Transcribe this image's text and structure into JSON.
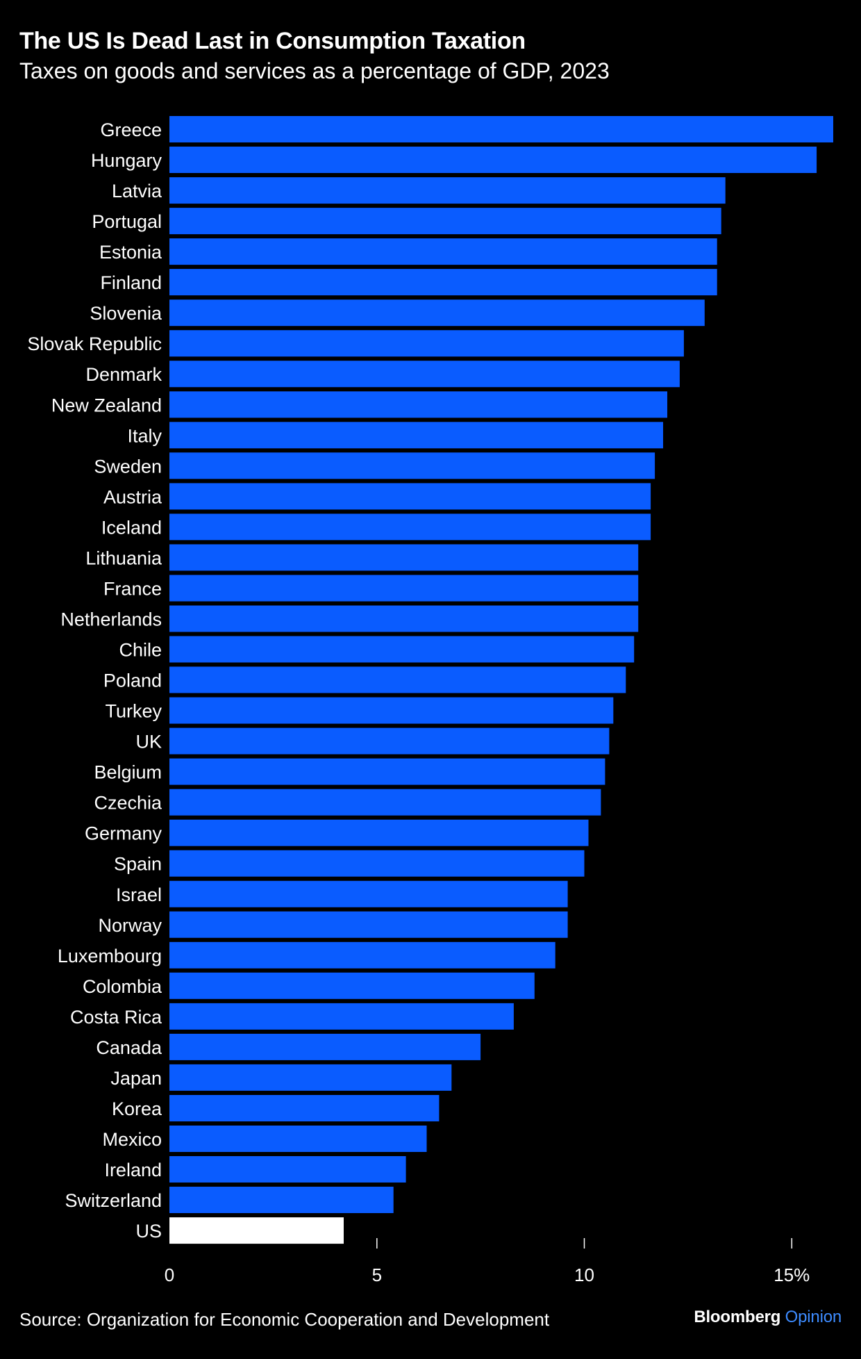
{
  "chart_data": {
    "type": "bar",
    "orientation": "horizontal",
    "title": "The US Is Dead Last in Consumption Taxation",
    "subtitle": "Taxes on goods and services as a percentage of GDP, 2023",
    "categories": [
      "Greece",
      "Hungary",
      "Latvia",
      "Portugal",
      "Estonia",
      "Finland",
      "Slovenia",
      "Slovak Republic",
      "Denmark",
      "New Zealand",
      "Italy",
      "Sweden",
      "Austria",
      "Iceland",
      "Lithuania",
      "France",
      "Netherlands",
      "Chile",
      "Poland",
      "Turkey",
      "UK",
      "Belgium",
      "Czechia",
      "Germany",
      "Spain",
      "Israel",
      "Norway",
      "Luxembourg",
      "Colombia",
      "Costa Rica",
      "Canada",
      "Japan",
      "Korea",
      "Mexico",
      "Ireland",
      "Switzerland",
      "US"
    ],
    "values": [
      16.0,
      15.6,
      13.4,
      13.3,
      13.2,
      13.2,
      12.9,
      12.4,
      12.3,
      12.0,
      11.9,
      11.7,
      11.6,
      11.6,
      11.3,
      11.3,
      11.3,
      11.2,
      11.0,
      10.7,
      10.6,
      10.5,
      10.4,
      10.1,
      10.0,
      9.6,
      9.6,
      9.3,
      8.8,
      8.3,
      7.5,
      6.8,
      6.5,
      6.2,
      5.7,
      5.4,
      4.2
    ],
    "highlight": "US",
    "xlim": [
      0,
      16.1
    ],
    "xticks": [
      0,
      5,
      10,
      15
    ],
    "xtick_labels": [
      "0",
      "5",
      "10",
      "15%"
    ],
    "xlabel": "",
    "ylabel": "",
    "grid": false,
    "legend": "none",
    "colors": {
      "bar": "#0a5cff",
      "highlight_bar": "#ffffff",
      "background": "#000000",
      "text": "#ffffff"
    }
  },
  "footer": {
    "source": "Source: Organization for Economic Cooperation and Development",
    "brand_name": "Bloomberg",
    "brand_section": "Opinion",
    "brand_section_color": "#3d8bff"
  }
}
